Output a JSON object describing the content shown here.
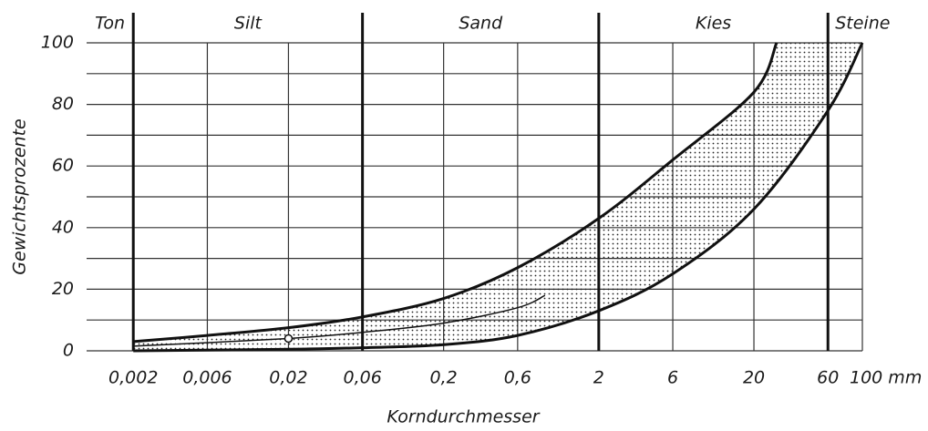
{
  "chart_data": {
    "type": "band",
    "x_label": "Korndurchmesser",
    "y_label": "Gewichtsprozente",
    "xscale": "log",
    "xlim": [
      0.001,
      100
    ],
    "ylim": [
      0,
      100
    ],
    "xticks": [
      {
        "value": 0.002,
        "label": "0,002"
      },
      {
        "value": 0.006,
        "label": "0,006"
      },
      {
        "value": 0.02,
        "label": "0,02"
      },
      {
        "value": 0.06,
        "label": "0,06"
      },
      {
        "value": 0.2,
        "label": "0,2"
      },
      {
        "value": 0.6,
        "label": "0,6"
      },
      2,
      6,
      20,
      60,
      {
        "value": 100,
        "label": "100 mm"
      }
    ],
    "yticks": [
      0,
      20,
      40,
      60,
      80,
      100
    ],
    "minor_yticks": [
      10,
      30,
      50,
      70,
      90
    ],
    "grid": true,
    "color": "#111111",
    "zone_boundaries": [
      0.002,
      0.06,
      2,
      60
    ],
    "zone_labels": [
      "Ton",
      "Silt",
      "Sand",
      "Kies",
      "Steine"
    ],
    "series": [
      {
        "x": [
          0.002,
          0.006,
          0.02,
          0.06,
          0.2,
          0.6,
          2,
          6,
          20,
          28
        ],
        "values": [
          3,
          5,
          7.5,
          11,
          17,
          27,
          43,
          62,
          84,
          100
        ]
      },
      {
        "x": [
          100,
          60,
          20,
          6,
          2,
          0.6,
          0.2,
          0.06,
          0.02,
          0.002
        ],
        "values": [
          100,
          78,
          46,
          25,
          13,
          5,
          2,
          1,
          0.5,
          0
        ]
      },
      {
        "x": [
          0.002,
          0.02,
          0.06,
          0.2,
          0.6,
          0.9
        ],
        "values": [
          1.5,
          4,
          6,
          9,
          14,
          18
        ]
      }
    ],
    "marker": {
      "x": 0.02,
      "y": 4
    }
  }
}
